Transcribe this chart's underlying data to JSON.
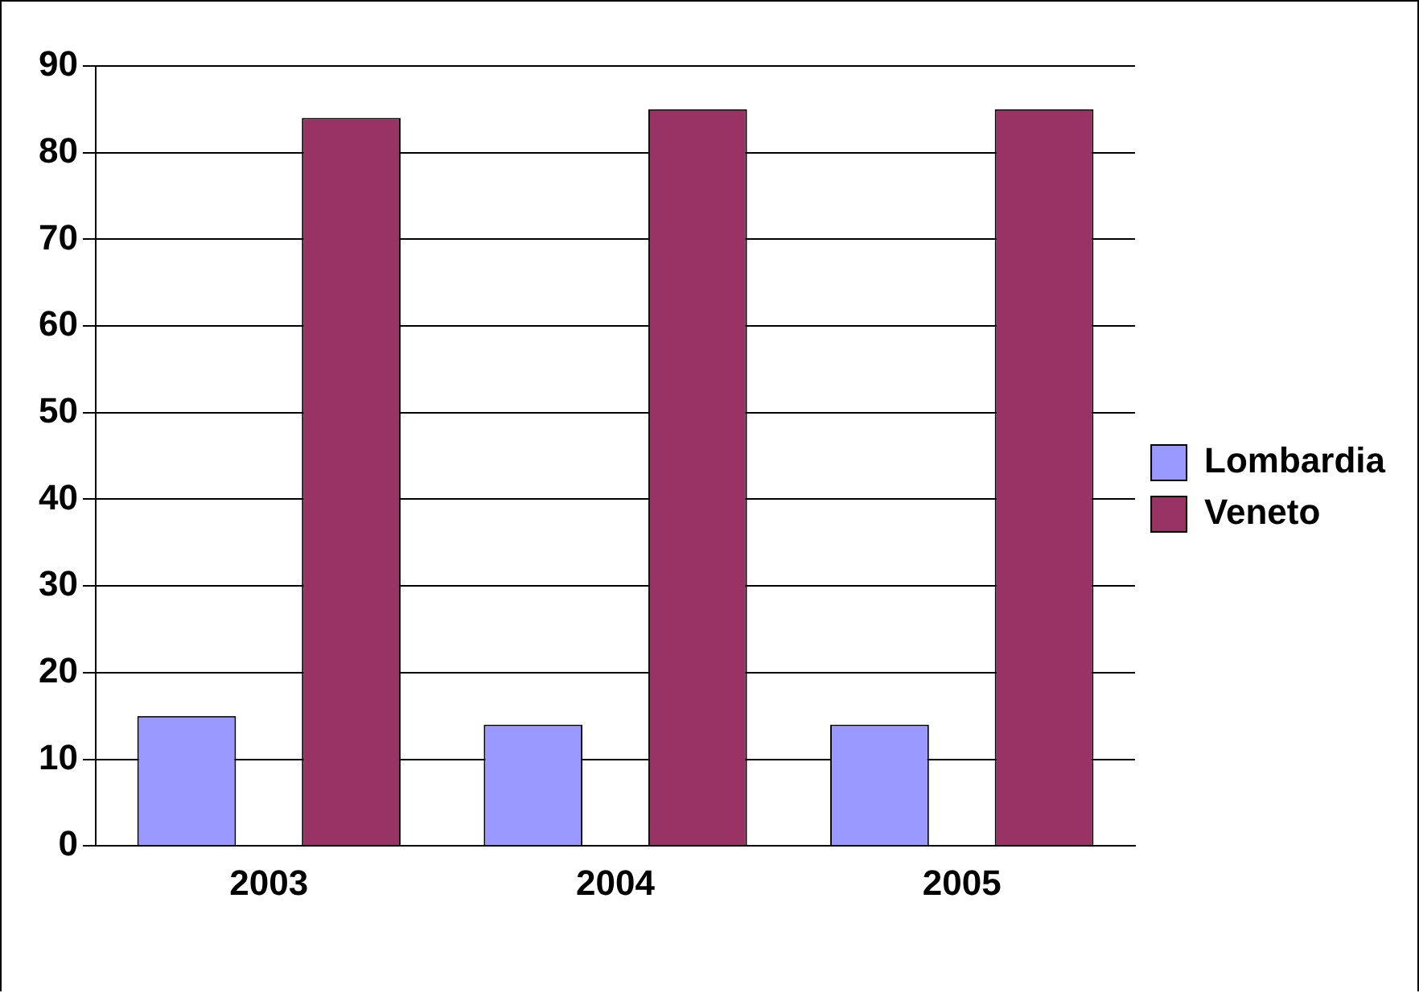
{
  "chart_data": {
    "type": "bar",
    "categories": [
      "2003",
      "2004",
      "2005"
    ],
    "series": [
      {
        "name": "Lombardia",
        "color": "#9999ff",
        "values": [
          15,
          14,
          14
        ]
      },
      {
        "name": "Veneto",
        "color": "#993366",
        "values": [
          84,
          85,
          85
        ]
      }
    ],
    "ylim": [
      0,
      90
    ],
    "yticks": [
      0,
      10,
      20,
      30,
      40,
      50,
      60,
      70,
      80,
      90
    ],
    "grid": "y",
    "legend": "right"
  }
}
